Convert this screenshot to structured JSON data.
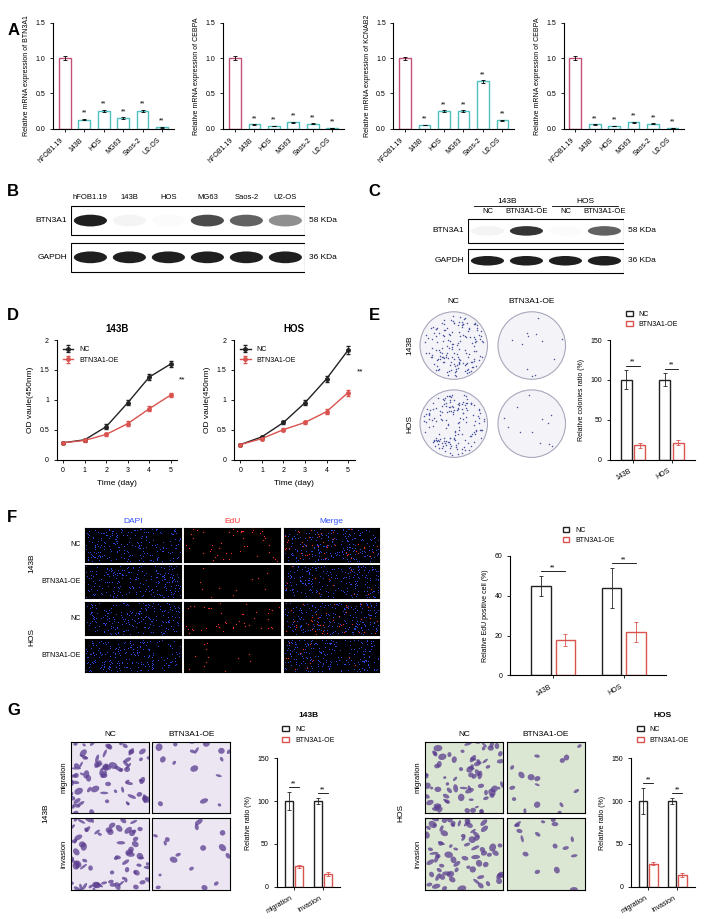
{
  "panel_letters": [
    "A",
    "B",
    "C",
    "D",
    "E",
    "F",
    "G"
  ],
  "chart_data": [
    {
      "type": "bar",
      "ylabel": "Relative mRNA expression of BTN3A1",
      "categories": [
        "hFOB1.19",
        "143B",
        "HOS",
        "MG63",
        "Saos-2",
        "U2-OS"
      ],
      "values": [
        1.0,
        0.13,
        0.25,
        0.15,
        0.25,
        0.02
      ],
      "errors": [
        0.03,
        0.01,
        0.02,
        0.01,
        0.02,
        0.005
      ],
      "colors": [
        "#c2507a",
        "#4fc1c1",
        "#4fc1c1",
        "#4fc1c1",
        "#4fc1c1",
        "#4fc1c1"
      ],
      "significance": [
        null,
        "**",
        "**",
        "**",
        "**",
        "**"
      ],
      "ylim": [
        0,
        1.5
      ],
      "yticks": [
        {
          "value": 0,
          "label": "0.0"
        },
        0.5,
        {
          "value": 1,
          "label": "1.0"
        },
        1.5
      ]
    },
    {
      "type": "bar",
      "ylabel": "Relative mRNA expression of CEBPA",
      "categories": [
        "hFOB1.19",
        "143B",
        "HOS",
        "MG63",
        "Saos-2",
        "U2-OS"
      ],
      "values": [
        1.0,
        0.06,
        0.04,
        0.09,
        0.07,
        0.01
      ],
      "errors": [
        0.03,
        0.005,
        0.004,
        0.005,
        0.005,
        0.003
      ],
      "colors": [
        "#c2507a",
        "#4fc1c1",
        "#4fc1c1",
        "#4fc1c1",
        "#4fc1c1",
        "#4fc1c1"
      ],
      "significance": [
        null,
        "**",
        "**",
        "**",
        "**",
        "**"
      ],
      "ylim": [
        0,
        1.5
      ],
      "yticks": [
        {
          "value": 0,
          "label": "0.0"
        },
        0.5,
        {
          "value": 1,
          "label": "1.0"
        },
        1.5
      ]
    },
    {
      "type": "bar",
      "ylabel": "Relative mRNA expression of KCNAB2",
      "categories": [
        "hFOB1.19",
        "143B",
        "HOS",
        "MG63",
        "Saos-2",
        "U2-OS"
      ],
      "values": [
        1.0,
        0.05,
        0.25,
        0.25,
        0.67,
        0.12
      ],
      "errors": [
        0.02,
        0.005,
        0.01,
        0.01,
        0.02,
        0.01
      ],
      "colors": [
        "#c2507a",
        "#4fc1c1",
        "#4fc1c1",
        "#4fc1c1",
        "#4fc1c1",
        "#4fc1c1"
      ],
      "significance": [
        null,
        "**",
        "**",
        "**",
        "**",
        "**"
      ],
      "ylim": [
        0,
        1.5
      ],
      "yticks": [
        {
          "value": 0,
          "label": "0.0"
        },
        0.5,
        {
          "value": 1,
          "label": "1.0"
        },
        1.5
      ]
    },
    {
      "type": "bar",
      "ylabel": "Relative mRNA expression of CEBPA",
      "categories": [
        "hFOB1.19",
        "143B",
        "HOS",
        "MG63",
        "Saos-2",
        "U2-OS"
      ],
      "values": [
        1.0,
        0.06,
        0.04,
        0.09,
        0.07,
        0.01
      ],
      "errors": [
        0.03,
        0.005,
        0.004,
        0.005,
        0.005,
        0.003
      ],
      "colors": [
        "#c2507a",
        "#4fc1c1",
        "#4fc1c1",
        "#4fc1c1",
        "#4fc1c1",
        "#4fc1c1"
      ],
      "significance": [
        null,
        "**",
        "**",
        "**",
        "**",
        "**"
      ],
      "ylim": [
        0,
        1.5
      ],
      "yticks": [
        {
          "value": 0,
          "label": "0.0"
        },
        0.5,
        {
          "value": 1,
          "label": "1.0"
        },
        1.5
      ]
    },
    {
      "type": "line",
      "title": "143B",
      "xlabel": "Time (day)",
      "ylabel": "OD vaule(450nm)",
      "x": [
        0,
        1,
        2,
        3,
        4,
        5
      ],
      "series": [
        {
          "name": "NC",
          "color": "#222222",
          "marker": "o",
          "line_style": "solid",
          "values": [
            0.28,
            0.33,
            0.55,
            0.95,
            1.38,
            1.6
          ],
          "errors": [
            0.01,
            0.02,
            0.04,
            0.04,
            0.05,
            0.05
          ]
        },
        {
          "name": "BTN3A1-OE",
          "color": "#d9534f",
          "marker": "o",
          "line_style": "solid",
          "values": [
            0.28,
            0.32,
            0.42,
            0.6,
            0.85,
            1.08
          ],
          "errors": [
            0.01,
            0.02,
            0.03,
            0.04,
            0.04,
            0.04
          ]
        }
      ],
      "significance": "**",
      "legend": "upper left",
      "xlim": [
        -0.3,
        5.3
      ],
      "xticks": [
        0,
        1,
        2,
        3,
        4,
        5
      ],
      "ylim": [
        0,
        2
      ],
      "yticks": [
        0,
        0.5,
        1,
        1.5,
        2
      ]
    },
    {
      "type": "line",
      "title": "HOS",
      "xlabel": "Time (day)",
      "ylabel": "OD vaule(450nm)",
      "x": [
        0,
        1,
        2,
        3,
        4,
        5
      ],
      "series": [
        {
          "name": "NC",
          "color": "#222222",
          "marker": "o",
          "line_style": "solid",
          "values": [
            0.25,
            0.38,
            0.62,
            0.95,
            1.35,
            1.83
          ],
          "errors": [
            0.01,
            0.02,
            0.03,
            0.04,
            0.05,
            0.07
          ]
        },
        {
          "name": "BTN3A1-OE",
          "color": "#d9534f",
          "marker": "o",
          "line_style": "solid",
          "values": [
            0.25,
            0.35,
            0.5,
            0.62,
            0.8,
            1.12
          ],
          "errors": [
            0.01,
            0.02,
            0.03,
            0.03,
            0.04,
            0.05
          ]
        }
      ],
      "significance": "**",
      "legend": "upper left",
      "xlim": [
        -0.3,
        5.3
      ],
      "xticks": [
        0,
        1,
        2,
        3,
        4,
        5
      ],
      "ylim": [
        0,
        2
      ],
      "yticks": [
        0,
        0.5,
        1,
        1.5,
        2
      ]
    },
    {
      "type": "bar",
      "ylabel": "Relative colonies ratio (%)",
      "categories": [
        "143B",
        "HOS"
      ],
      "series": [
        {
          "name": "NC",
          "color": "#222222",
          "values": [
            100,
            100
          ],
          "errors": [
            12,
            8
          ]
        },
        {
          "name": "BTN3A1-OE",
          "color": "#d9534f",
          "values": [
            18,
            21
          ],
          "errors": [
            3,
            3
          ]
        }
      ],
      "significance": [
        "**",
        "**"
      ],
      "legend": "upper center",
      "ylim": [
        0,
        150
      ],
      "yticks": [
        0,
        50,
        100,
        150
      ]
    },
    {
      "type": "bar",
      "ylabel": "Relative EdU positive cell (%)",
      "categories": [
        "143B",
        "HOS"
      ],
      "series": [
        {
          "name": "NC",
          "color": "#222222",
          "values": [
            45,
            44
          ],
          "errors": [
            5,
            10
          ]
        },
        {
          "name": "BTN3A1-OE",
          "color": "#d9534f",
          "values": [
            18,
            22
          ],
          "errors": [
            3,
            5
          ]
        }
      ],
      "significance": [
        "**",
        "**"
      ],
      "legend": "upper center",
      "ylim": [
        0,
        60
      ],
      "yticks": [
        0,
        20,
        40,
        60
      ]
    },
    {
      "type": "bar",
      "title": "143B",
      "ylabel": "Relative ratio (%)",
      "categories": [
        "migration",
        "invasion"
      ],
      "series": [
        {
          "name": "NC",
          "color": "#222222",
          "values": [
            100,
            100
          ],
          "errors": [
            10,
            3
          ]
        },
        {
          "name": "BTN3A1-OE",
          "color": "#d9534f",
          "values": [
            24,
            15
          ],
          "errors": [
            2,
            2
          ]
        }
      ],
      "significance": [
        "**",
        "**"
      ],
      "legend": "upper center",
      "ylim": [
        0,
        150
      ],
      "yticks": [
        0,
        50,
        100,
        150
      ]
    },
    {
      "type": "bar",
      "title": "HOS",
      "ylabel": "Relative ratio (%)",
      "categories": [
        "migration",
        "invasion"
      ],
      "series": [
        {
          "name": "NC",
          "color": "#222222",
          "values": [
            100,
            100
          ],
          "errors": [
            15,
            3
          ]
        },
        {
          "name": "BTN3A1-OE",
          "color": "#d9534f",
          "values": [
            27,
            14
          ],
          "errors": [
            2,
            2
          ]
        }
      ],
      "significance": [
        "**",
        "**"
      ],
      "legend": "upper center",
      "ylim": [
        0,
        150
      ],
      "yticks": [
        0,
        50,
        100,
        150
      ]
    }
  ],
  "blots": [
    {
      "lanes": [
        "hFOB1.19",
        "143B",
        "HOS",
        "MG63",
        "Saos-2",
        "U2-OS"
      ],
      "rows": [
        {
          "name": "BTN3A1",
          "size": "58 KDa",
          "intensity": [
            1.0,
            0.05,
            0.02,
            0.8,
            0.7,
            0.5
          ]
        },
        {
          "name": "GAPDH",
          "size": "36 KDa",
          "intensity": [
            1.0,
            1.0,
            1.0,
            1.0,
            1.0,
            1.0
          ]
        }
      ]
    },
    {
      "groups": [
        "143B",
        "HOS"
      ],
      "lanes": [
        "NC",
        "BTN3A1-OE",
        "NC",
        "BTN3A1-OE"
      ],
      "rows": [
        {
          "name": "BTN3A1",
          "size": "58 KDa",
          "intensity": [
            0.05,
            0.9,
            0.02,
            0.7
          ]
        },
        {
          "name": "GAPDH",
          "size": "36 KDa",
          "intensity": [
            1.0,
            1.0,
            1.0,
            1.0
          ]
        }
      ]
    }
  ],
  "colony": {
    "rows": [
      "143B",
      "HOS"
    ],
    "columns": [
      "NC",
      "BTN3A1-OE"
    ]
  },
  "edu": {
    "groups": [
      "143B",
      "HOS"
    ],
    "rows": [
      "NC",
      "BTN3A1-OE"
    ],
    "columns": [
      "DAPI",
      "EdU",
      "Merge"
    ]
  },
  "transwell": [
    {
      "cell": "143B",
      "rows": [
        "migration",
        "invasion"
      ],
      "columns": [
        "NC",
        "BTN3A1-OE"
      ]
    },
    {
      "cell": "HOS",
      "rows": [
        "migration",
        "invasion"
      ],
      "columns": [
        "NC",
        "BTN3A1-OE"
      ]
    }
  ]
}
